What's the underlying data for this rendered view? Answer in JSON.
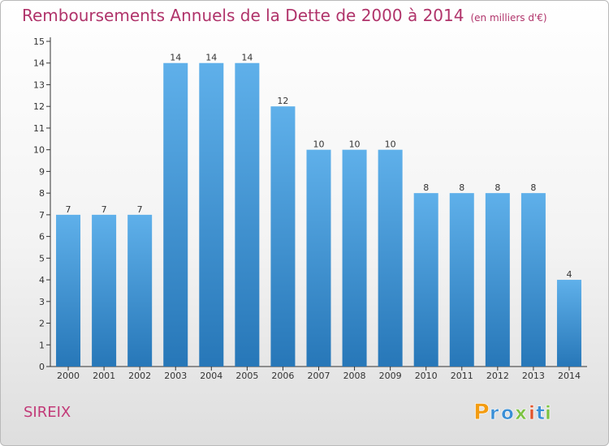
{
  "title": "Remboursements Annuels de la Dette de 2000 à 2014",
  "subtitle": "(en milliers d'€)",
  "commune": "SIREIX",
  "logo": {
    "text": "Proxiti",
    "letters": [
      "P",
      "r",
      "o",
      "x",
      "i",
      "t",
      "i"
    ],
    "colors": [
      "#f39c12",
      "#3a8fd6",
      "#3a8fd6",
      "#7cc242",
      "#e0542b",
      "#3a8fd6",
      "#7cc242"
    ]
  },
  "colors": {
    "title": "#b0336a",
    "bar_top": "#5fb0ea",
    "bar_bottom": "#2777b8",
    "axis": "#333333"
  },
  "chart_data": {
    "type": "bar",
    "title": "Remboursements Annuels de la Dette de 2000 à 2014",
    "subtitle": "(en milliers d'€)",
    "categories": [
      "2000",
      "2001",
      "2002",
      "2003",
      "2004",
      "2005",
      "2006",
      "2007",
      "2008",
      "2009",
      "2010",
      "2011",
      "2012",
      "2013",
      "2014"
    ],
    "values": [
      7,
      7,
      7,
      14,
      14,
      14,
      12,
      10,
      10,
      10,
      8,
      8,
      8,
      8,
      4
    ],
    "ylim": [
      0,
      15
    ],
    "yticks": [
      0,
      1,
      2,
      3,
      4,
      5,
      6,
      7,
      8,
      9,
      10,
      11,
      12,
      13,
      14,
      15
    ],
    "grid": false,
    "data_labels": true
  }
}
